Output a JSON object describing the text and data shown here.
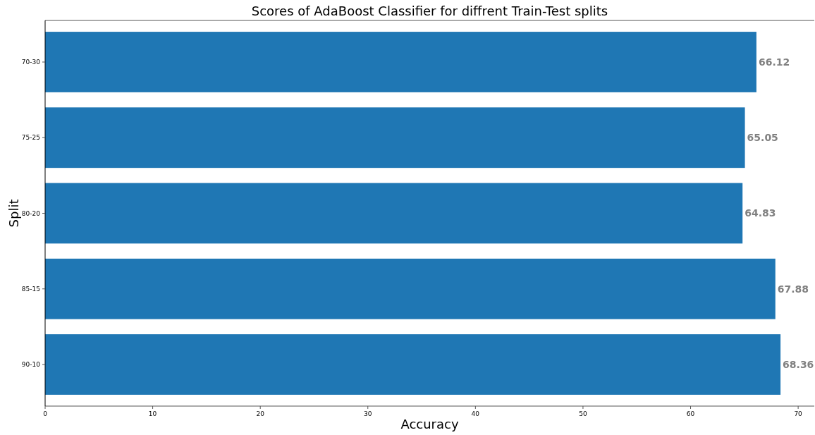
{
  "chart_data": {
    "type": "bar",
    "orientation": "horizontal",
    "title": "Scores of AdaBoost Classifier for diffrent Train-Test splits",
    "xlabel": "Accuracy",
    "ylabel": "Split",
    "categories": [
      "70-30",
      "75-25",
      "80-20",
      "85-15",
      "90-10"
    ],
    "values": [
      66.12,
      65.05,
      64.83,
      67.88,
      68.36
    ],
    "color": "#1f77b4",
    "xlim": [
      0,
      71.5
    ],
    "xticks": [
      0,
      10,
      20,
      30,
      40,
      50,
      60,
      70
    ],
    "data_labels": true,
    "grid": false
  }
}
